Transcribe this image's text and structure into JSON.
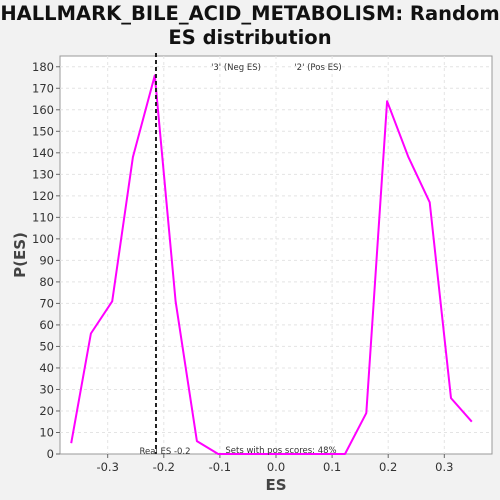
{
  "chart_data": {
    "type": "line",
    "title_line1": "HALLMARK_BILE_ACID_METABOLISM: Random",
    "title_line2": "ES distribution",
    "xlabel": "ES",
    "ylabel": "P(ES)",
    "xlim": [
      -0.385,
      0.385
    ],
    "ylim": [
      0,
      185
    ],
    "x_ticks": [
      -0.3,
      -0.2,
      -0.1,
      0.0,
      0.1,
      0.2,
      0.3
    ],
    "x_tick_labels": [
      "-0.3",
      "-0.2",
      "-0.1",
      "0.0",
      "0.1",
      "0.2",
      "0.3"
    ],
    "y_ticks": [
      0,
      10,
      20,
      30,
      40,
      50,
      60,
      70,
      80,
      90,
      100,
      110,
      120,
      130,
      140,
      150,
      160,
      170,
      180
    ],
    "grid": true,
    "series": [
      {
        "color": "#ff00ff",
        "x": [
          -0.365,
          -0.33,
          -0.292,
          -0.255,
          -0.216,
          -0.179,
          -0.141,
          -0.103,
          -0.065,
          -0.028,
          0.01,
          0.048,
          0.085,
          0.123,
          0.161,
          0.198,
          0.236,
          0.274,
          0.312,
          0.349
        ],
        "y": [
          5,
          56,
          71,
          138,
          176,
          71,
          6,
          0,
          0,
          0,
          0,
          0,
          0,
          0,
          19,
          164,
          138,
          117,
          26,
          15
        ]
      }
    ],
    "real_es": -0.2139,
    "legend": [
      {
        "label": "'3' (Neg ES)",
        "color": "#0000ff"
      },
      {
        "label": "'2' (Pos ES)",
        "color": "#ff0000"
      }
    ],
    "annotations": {
      "real_es_label": "Real ES -0.2",
      "pos_scores_label": "Sets with pos scores: 48%"
    }
  }
}
